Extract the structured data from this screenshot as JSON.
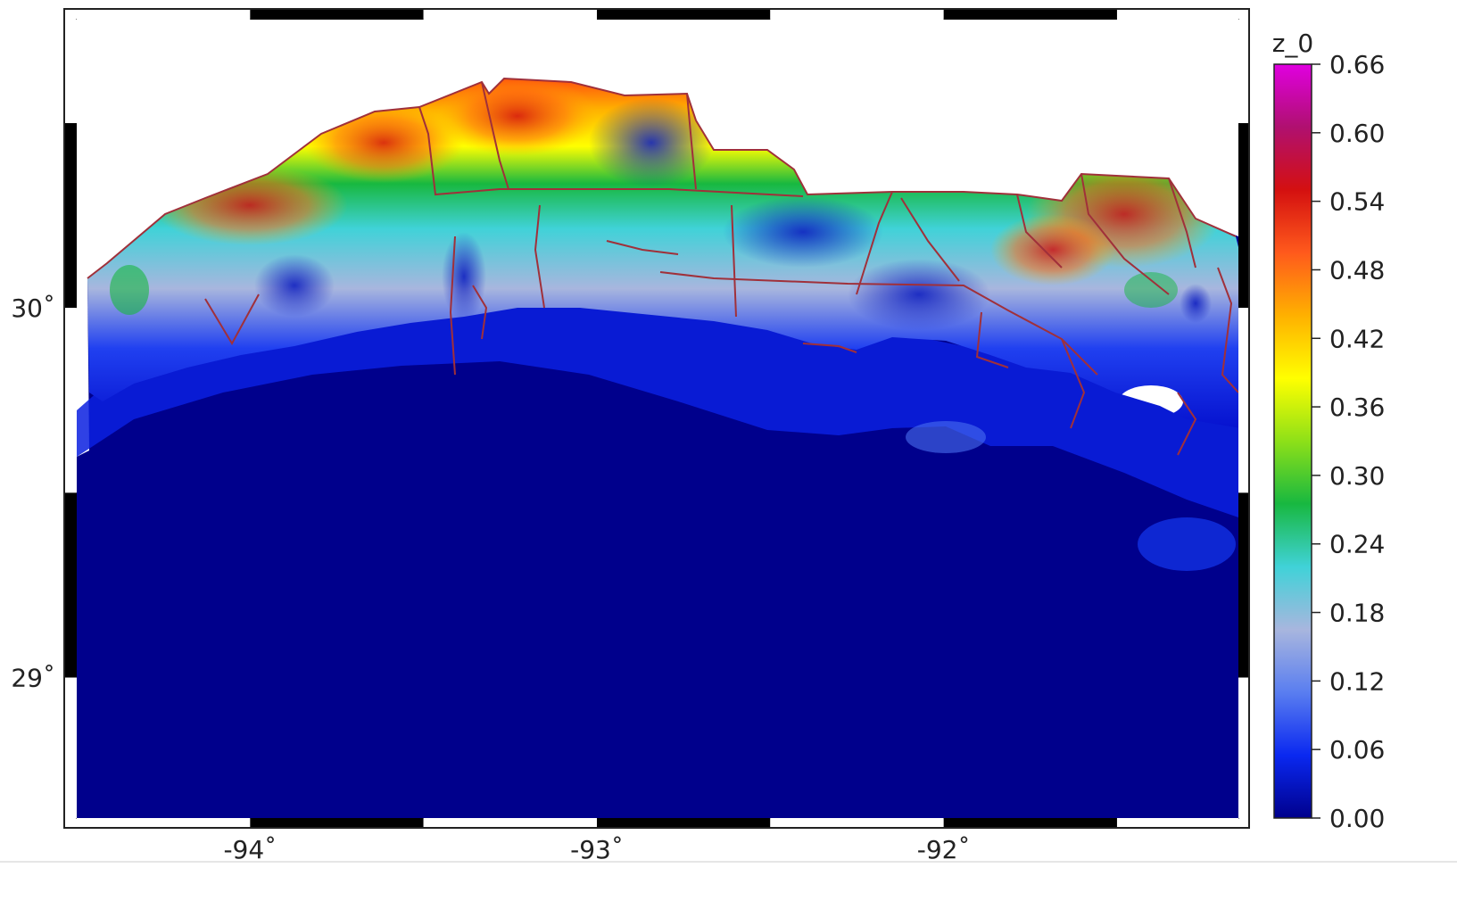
{
  "map": {
    "x_ticks": [
      {
        "lon": -94,
        "label": "-94˚"
      },
      {
        "lon": -93,
        "label": "-93˚"
      },
      {
        "lon": -92,
        "label": "-92˚"
      }
    ],
    "y_ticks": [
      {
        "lat": 30,
        "label": "30˚"
      },
      {
        "lat": 29,
        "label": "29˚"
      }
    ],
    "lon_range": [
      -94.5,
      -91.15
    ],
    "lat_range": [
      28.62,
      30.78
    ],
    "ocean_color": "#00008c",
    "boundary_color": "#a0303a"
  },
  "colorbar": {
    "title": "z_0",
    "ticks": [
      "0.66",
      "0.60",
      "0.54",
      "0.48",
      "0.42",
      "0.36",
      "0.30",
      "0.24",
      "0.18",
      "0.12",
      "0.06",
      "0.00"
    ],
    "min": 0.0,
    "max": 0.66,
    "colors": [
      "#00008c",
      "#0a28f0",
      "#5a7ef0",
      "#a8b6de",
      "#40d2d8",
      "#18b840",
      "#8ee018",
      "#ffff00",
      "#ffb000",
      "#ff5a1c",
      "#d41010",
      "#b01070",
      "#e000e0"
    ]
  }
}
